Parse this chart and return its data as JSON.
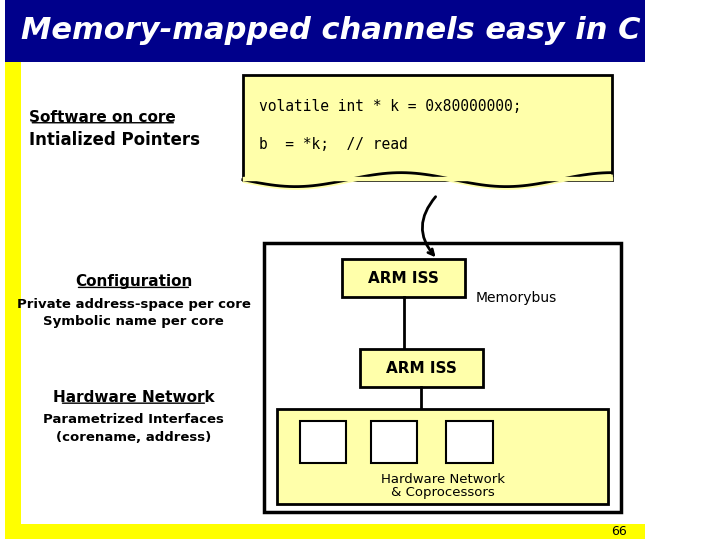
{
  "title": "Memory-mapped channels easy in C",
  "title_bg": "#00008B",
  "title_color": "#FFFFFF",
  "slide_bg": "#FFFFFF",
  "left_bar_color": "#FFFF00",
  "code_box_color": "#FFFFAA",
  "code_line1": "volatile int * k = 0x80000000;",
  "code_line2": "b  = *k;  // read",
  "label1_line1": "Software on core",
  "label1_line2": "Intialized Pointers",
  "label2_line1": "Configuration",
  "label2_line2": "Private address-space per core",
  "label2_line3": "Symbolic name per core",
  "label3_line1": "Hardware Network",
  "label3_line2": "Parametrized Interfaces",
  "label3_line3": "(corename, address)",
  "arm_iss_label": "ARM ISS",
  "memorybus_label": "Memorybus",
  "arm_iss2_label": "ARM ISS",
  "hw_label1": "Hardware Network",
  "hw_label2": "& Coprocessors",
  "page_num": "66",
  "diagram_box_color": "#FFFFAA",
  "diagram_border": "#000000"
}
